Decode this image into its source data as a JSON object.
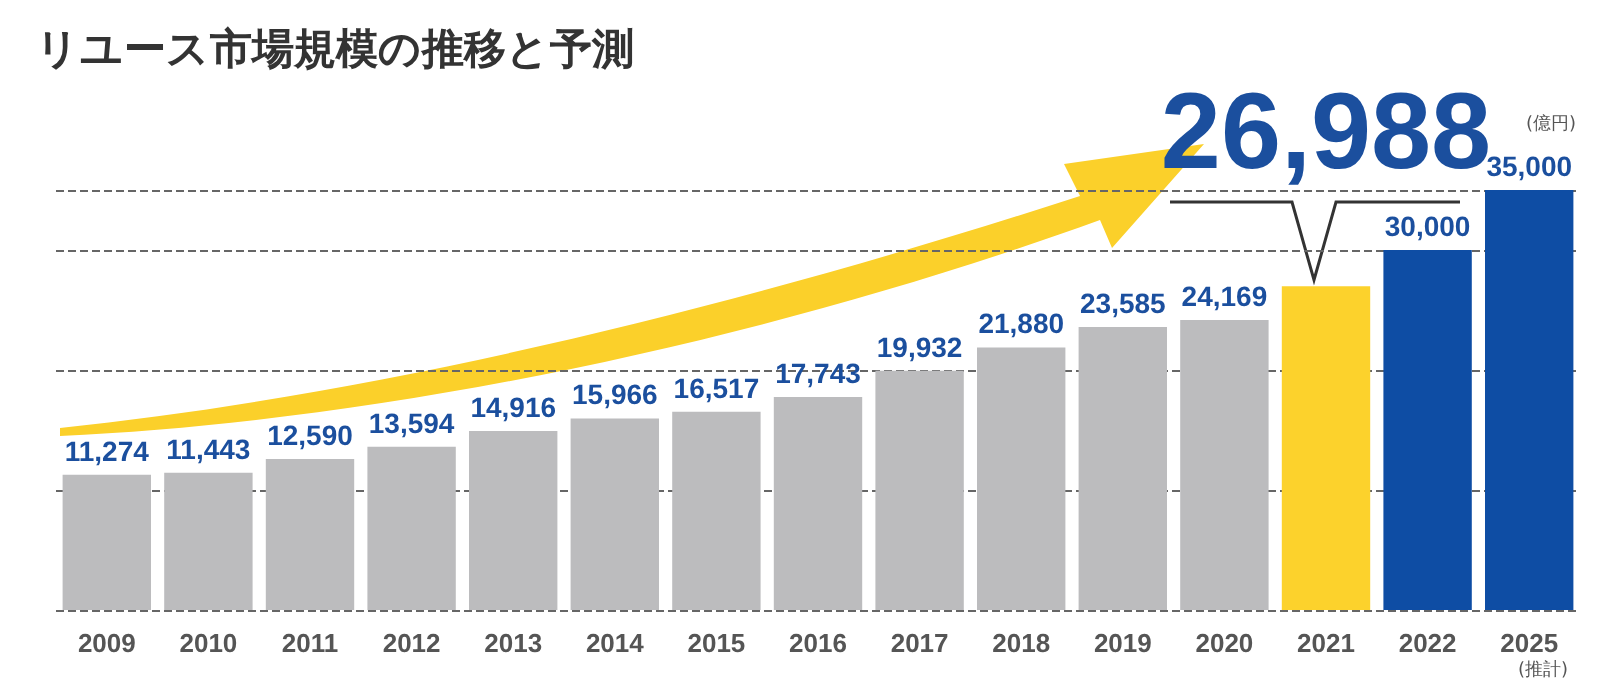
{
  "chart_data": {
    "type": "bar",
    "title": "リユース市場規模の推移と予測",
    "categories": [
      "2009",
      "2010",
      "2011",
      "2012",
      "2013",
      "2014",
      "2015",
      "2016",
      "2017",
      "2018",
      "2019",
      "2020",
      "2021",
      "2022",
      "2025"
    ],
    "values": [
      11274,
      11443,
      12590,
      13594,
      14916,
      15966,
      16517,
      17743,
      19932,
      21880,
      23585,
      24169,
      26988,
      30000,
      35000
    ],
    "colors": [
      "#bcbcbe",
      "#bcbcbe",
      "#bcbcbe",
      "#bcbcbe",
      "#bcbcbe",
      "#bcbcbe",
      "#bcbcbe",
      "#bcbcbe",
      "#bcbcbe",
      "#bcbcbe",
      "#bcbcbe",
      "#bcbcbe",
      "#fcd22c",
      "#0e4da4",
      "#0e4da4"
    ],
    "value_labels": [
      "11,274",
      "11,443",
      "12,590",
      "13,594",
      "14,916",
      "15,966",
      "16,517",
      "17,743",
      "19,932",
      "21,880",
      "23,585",
      "24,169",
      "26,988",
      "30,000",
      "35,000"
    ],
    "tick_labels": "x",
    "grid": "y",
    "annotations": [
      "(億円)",
      "(推計)"
    ]
  }
}
